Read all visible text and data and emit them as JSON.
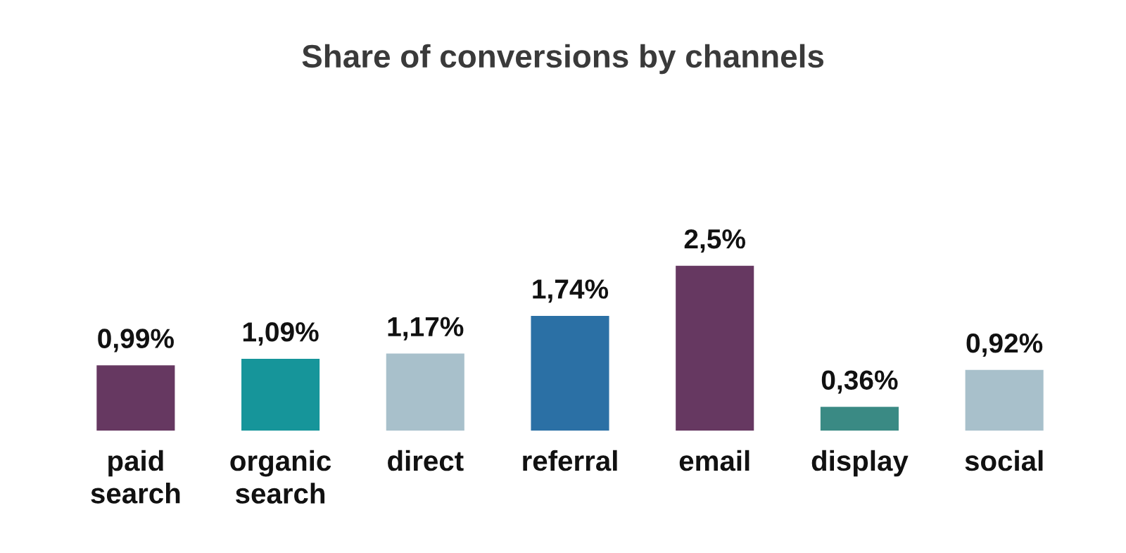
{
  "chart_data": {
    "type": "bar",
    "title": "Share of conversions by channels",
    "categories": [
      "paid\nsearch",
      "organic\nsearch",
      "direct",
      "referral",
      "email",
      "display",
      "social"
    ],
    "values": [
      0.99,
      1.09,
      1.17,
      1.74,
      2.5,
      0.36,
      0.92
    ],
    "value_labels": [
      "0,99%",
      "1,09%",
      "1,17%",
      "1,74%",
      "2,5%",
      "0,36%",
      "0,92%"
    ],
    "colors": [
      "#663861",
      "#16959a",
      "#a8c0cb",
      "#2b70a5",
      "#663861",
      "#3a8a84",
      "#a8c0cb"
    ],
    "grid": false,
    "legend": false
  }
}
